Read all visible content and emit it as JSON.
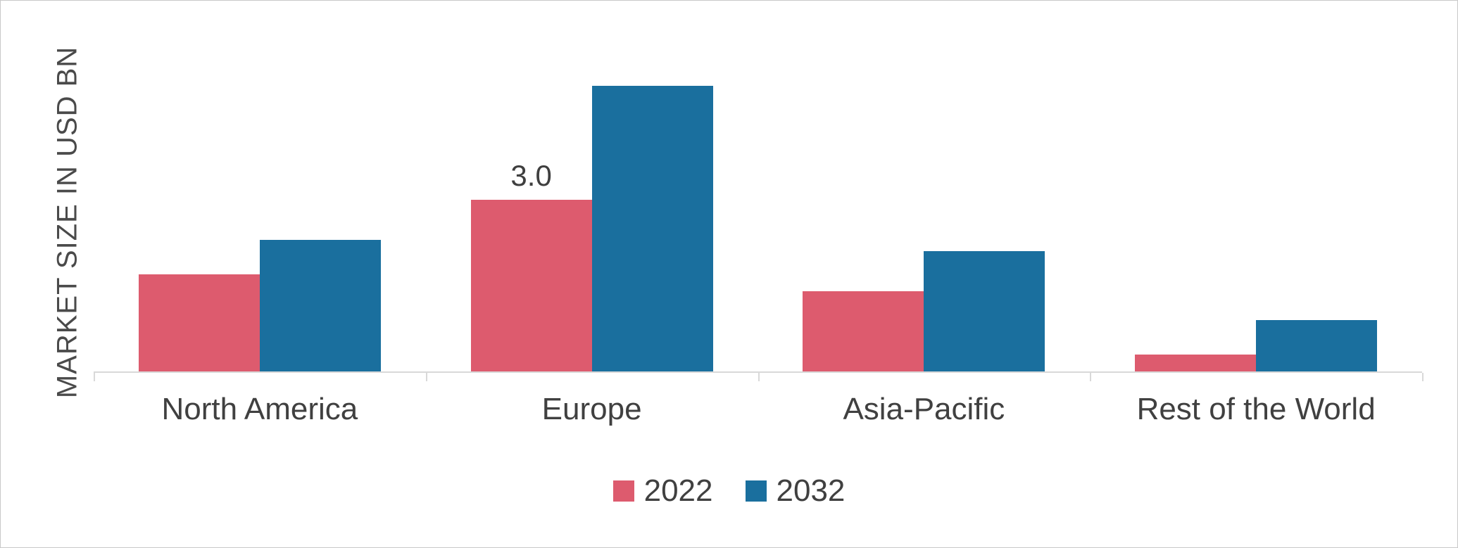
{
  "chart_data": {
    "type": "bar",
    "title": "",
    "ylabel": "MARKET SIZE IN USD BN",
    "xlabel": "",
    "categories": [
      "North America",
      "Europe",
      "Asia-Pacific",
      "Rest of the World"
    ],
    "series": [
      {
        "name": "2022",
        "color": "#dd5b6e",
        "values": [
          1.7,
          3.0,
          1.4,
          0.3
        ]
      },
      {
        "name": "2032",
        "color": "#1a6f9e",
        "values": [
          2.3,
          5.0,
          2.1,
          0.9
        ]
      }
    ],
    "ylim": [
      0,
      5.5
    ],
    "grid": false,
    "legend_position": "bottom",
    "data_labels": [
      {
        "series": "2022",
        "category": "Europe",
        "text": "3.0"
      }
    ]
  },
  "colors": {
    "axis_line": "#d9d9d9",
    "text": "#404040",
    "ylabel_text": "#4a4a4a"
  }
}
